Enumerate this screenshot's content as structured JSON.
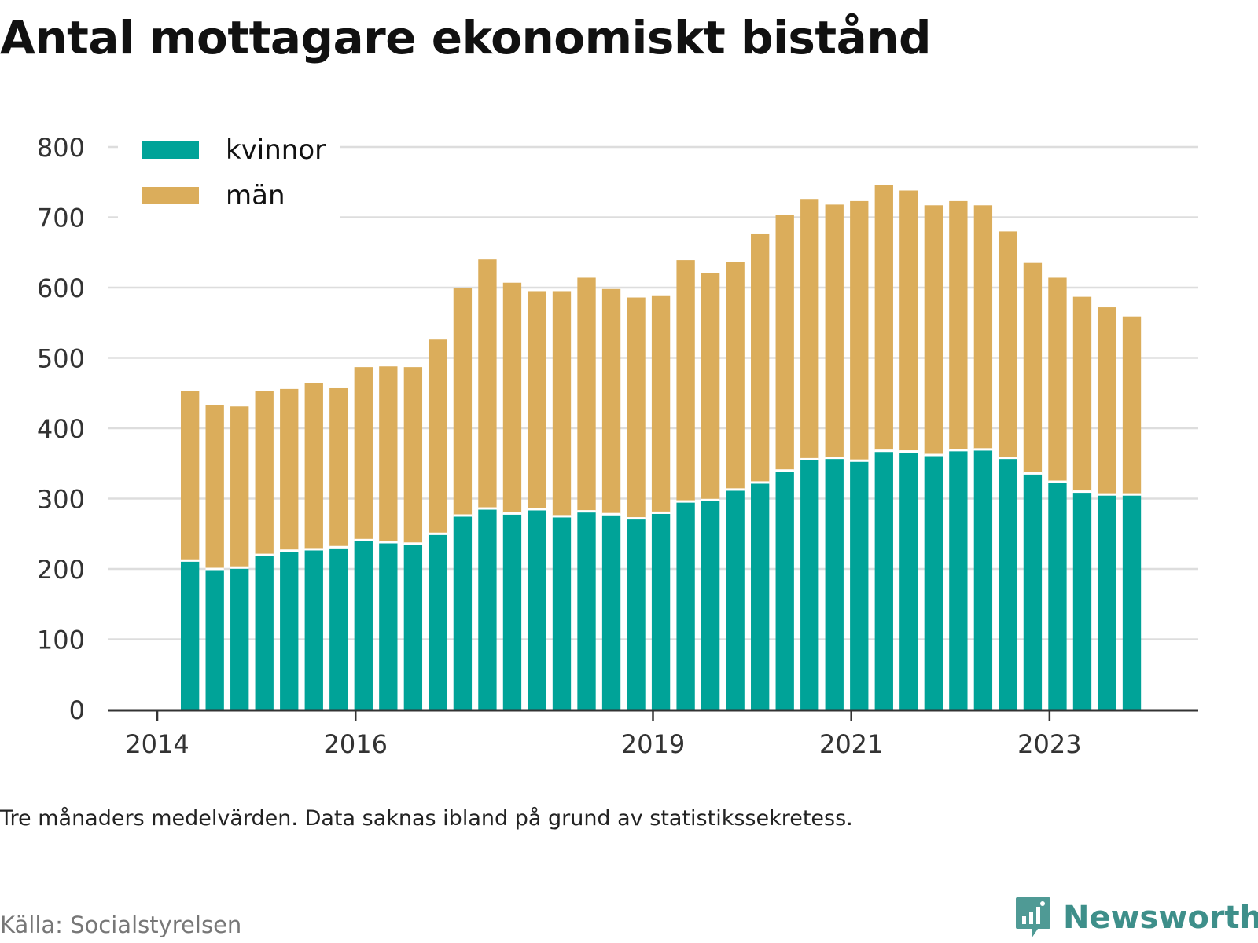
{
  "title": "Antal mottagare ekonomiskt bistånd",
  "note": "Tre månaders medelvärden. Data saknas ibland på grund av statistikssekretess.",
  "source": "Källa: Socialstyrelsen",
  "brand": {
    "name": "Newsworthy",
    "icon": "newsworthy-logo-icon"
  },
  "colors": {
    "kvinnor": "#00a398",
    "man": "#dbad5b",
    "grid": "#dddddd",
    "axis": "#333333"
  },
  "chart_data": {
    "type": "bar",
    "stacked": true,
    "x_ticks": [
      {
        "label": "2014",
        "position": 2014.0
      },
      {
        "label": "2016",
        "position": 2016.0
      },
      {
        "label": "2019",
        "position": 2019.0
      },
      {
        "label": "2021",
        "position": 2021.0
      },
      {
        "label": "2023",
        "position": 2023.0
      }
    ],
    "xlim": [
      2013.5,
      2024.5
    ],
    "ylim": [
      0,
      800
    ],
    "y_ticks": [
      0,
      100,
      200,
      300,
      400,
      500,
      600,
      700,
      800
    ],
    "grid": true,
    "legend_position": "top-left",
    "x": [
      2014.33,
      2014.58,
      2014.83,
      2015.08,
      2015.33,
      2015.58,
      2015.83,
      2016.08,
      2016.33,
      2016.58,
      2016.83,
      2017.08,
      2017.33,
      2017.58,
      2017.83,
      2018.08,
      2018.33,
      2018.58,
      2018.83,
      2019.08,
      2019.33,
      2019.58,
      2019.83,
      2020.08,
      2020.33,
      2020.58,
      2020.83,
      2021.08,
      2021.33,
      2021.58,
      2021.83,
      2022.08,
      2022.33,
      2022.58,
      2022.83,
      2023.08,
      2023.33,
      2023.58,
      2023.83
    ],
    "series": [
      {
        "name": "kvinnor",
        "color": "#00a398",
        "values": [
          212,
          200,
          202,
          220,
          226,
          228,
          231,
          241,
          238,
          236,
          250,
          276,
          286,
          279,
          285,
          275,
          282,
          278,
          272,
          280,
          296,
          298,
          313,
          323,
          340,
          356,
          358,
          354,
          368,
          367,
          362,
          369,
          370,
          358,
          336,
          324,
          310,
          306,
          306
        ]
      },
      {
        "name": "män",
        "color": "#dbad5b",
        "values": [
          241,
          233,
          229,
          233,
          230,
          236,
          226,
          246,
          250,
          251,
          276,
          323,
          354,
          328,
          310,
          320,
          332,
          320,
          314,
          308,
          343,
          323,
          323,
          353,
          363,
          370,
          360,
          369,
          378,
          371,
          355,
          354,
          347,
          322,
          299,
          290,
          277,
          266,
          253
        ]
      }
    ]
  }
}
